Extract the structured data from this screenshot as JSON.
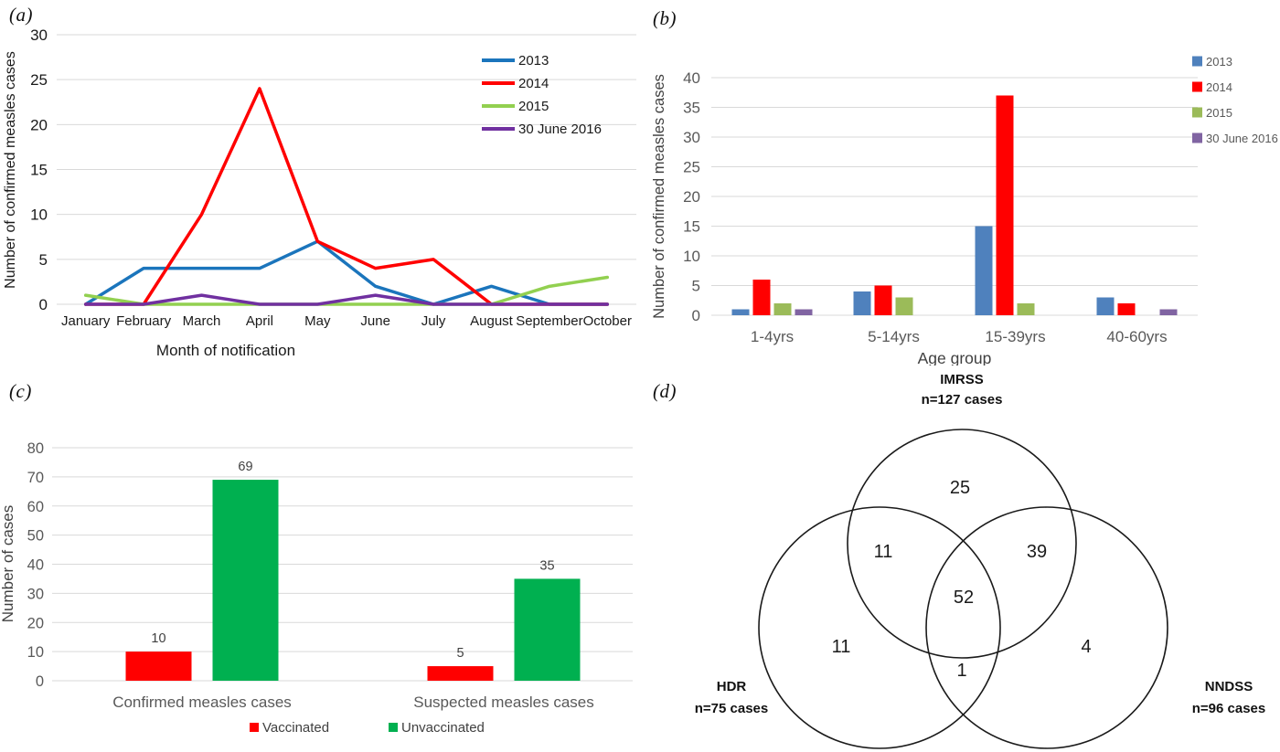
{
  "panel_labels": {
    "a": "(a)",
    "b": "(b)",
    "c": "(c)",
    "d": "(d)"
  },
  "theme": {
    "background": "#FFFFFF",
    "grid_color": "#D9D9D9",
    "axis_color": "#C6C6C6",
    "dark_text": "#1A1A1A",
    "gray_text": "#595959",
    "label_text": "#404040"
  },
  "chart_data": [
    {
      "id": "a",
      "type": "line",
      "title": "",
      "xlabel": "Month of notification",
      "ylabel": "Number of confirmed measles cases",
      "categories": [
        "January",
        "February",
        "March",
        "April",
        "May",
        "June",
        "July",
        "August",
        "September",
        "October"
      ],
      "series": [
        {
          "name": "2013",
          "color": "#1B75BC",
          "values": [
            0,
            4,
            4,
            4,
            7,
            2,
            0,
            2,
            0,
            0
          ]
        },
        {
          "name": "2014",
          "color": "#FF0000",
          "values": [
            0,
            0,
            10,
            24,
            7,
            4,
            5,
            0,
            0,
            0
          ]
        },
        {
          "name": "2015",
          "color": "#92D050",
          "values": [
            1,
            0,
            0,
            0,
            0,
            0,
            0,
            0,
            2,
            3
          ]
        },
        {
          "name": "30 June 2016",
          "color": "#7030A0",
          "values": [
            0,
            0,
            1,
            0,
            0,
            1,
            0,
            0,
            0,
            0
          ]
        }
      ],
      "ylim": [
        0,
        30
      ],
      "yticks": [
        0,
        5,
        10,
        15,
        20,
        25,
        30
      ],
      "grid": true,
      "legend_position": "inside-top-right"
    },
    {
      "id": "b",
      "type": "bar",
      "title": "",
      "xlabel": "Age group",
      "ylabel": "Number of confirmed measles cases",
      "categories": [
        "1-4yrs",
        "5-14yrs",
        "15-39yrs",
        "40-60yrs"
      ],
      "series": [
        {
          "name": "2013",
          "color": "#4F81BD",
          "values": [
            1,
            4,
            15,
            3
          ]
        },
        {
          "name": "2014",
          "color": "#FF0000",
          "values": [
            6,
            5,
            37,
            2
          ]
        },
        {
          "name": "2015",
          "color": "#9BBB59",
          "values": [
            2,
            3,
            2,
            0
          ]
        },
        {
          "name": "30 June 2016",
          "color": "#8064A2",
          "values": [
            1,
            0,
            0,
            1
          ]
        }
      ],
      "ylim": [
        0,
        40
      ],
      "yticks": [
        0,
        5,
        10,
        15,
        20,
        25,
        30,
        35,
        40
      ],
      "grid": true,
      "legend_position": "right"
    },
    {
      "id": "c",
      "type": "bar",
      "title": "",
      "xlabel": "",
      "ylabel": "Number of cases",
      "categories": [
        "Confirmed measles cases",
        "Suspected measles cases"
      ],
      "series": [
        {
          "name": "Vaccinated",
          "color": "#FF0000",
          "values": [
            10,
            5
          ]
        },
        {
          "name": "Unvaccinated",
          "color": "#00B050",
          "values": [
            69,
            35
          ]
        }
      ],
      "ylim": [
        0,
        80
      ],
      "yticks": [
        0,
        10,
        20,
        30,
        40,
        50,
        60,
        70,
        80
      ],
      "grid": true,
      "data_labels": true,
      "legend_position": "bottom"
    },
    {
      "id": "d",
      "type": "venn",
      "sets": [
        {
          "id": "imrss",
          "label": "IMRSS",
          "sublabel": "n=127 cases",
          "total": 127
        },
        {
          "id": "hdr",
          "label": "HDR",
          "sublabel": "n=75 cases",
          "total": 75
        },
        {
          "id": "nndss",
          "label": "NNDSS",
          "sublabel": "n=96 cases",
          "total": 96
        }
      ],
      "regions": [
        {
          "id": "imrss-only",
          "value": 25
        },
        {
          "id": "imrss-hdr",
          "value": 11
        },
        {
          "id": "imrss-nndss",
          "value": 39
        },
        {
          "id": "all-three",
          "value": 52
        },
        {
          "id": "hdr-only",
          "value": 11
        },
        {
          "id": "hdr-nndss",
          "value": 1
        },
        {
          "id": "nndss-only",
          "value": 4
        }
      ]
    }
  ]
}
